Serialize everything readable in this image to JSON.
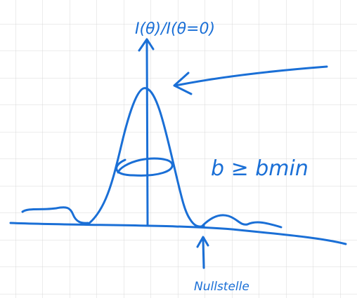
{
  "axis_label": "I(θ)/I(θ=0)",
  "annotations": {
    "condition": "b ≥ bmin",
    "zero": "Nullstelle"
  }
}
